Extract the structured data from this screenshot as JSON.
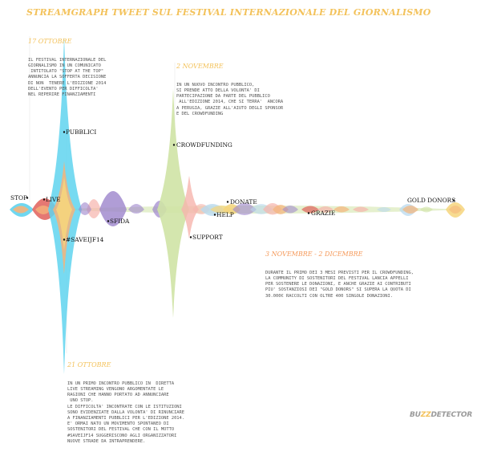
{
  "chart_data": {
    "type": "area",
    "title": "STREAMGRAPH TWEET SUL FESTIVAL INTERNAZIONALE DEL GIORNALISMO",
    "colors": {
      "cyan": "#5fd3ee",
      "yellow": "#f6d57c",
      "orange": "#f5b37a",
      "red": "#e0605a",
      "purple": "#9c84cc",
      "green": "#cfe3a5",
      "pink": "#f6b4ad",
      "lightblue": "#b9d9ef",
      "text_yellow": "#f3c25b",
      "text_orange": "#f59a5b"
    },
    "events": [
      {
        "label": "STOP",
        "color": "#5fd3ee"
      },
      {
        "label": "LIVE",
        "color": "#e0605a"
      },
      {
        "label": "PUBBLICI",
        "color": "#5fd3ee"
      },
      {
        "label": "#SAVEIJF14",
        "color": "#f6d57c"
      },
      {
        "label": "SFIDA",
        "color": "#9c84cc"
      },
      {
        "label": "CROWDFUNDING",
        "color": "#cfe3a5"
      },
      {
        "label": "SUPPORT",
        "color": "#f6b4ad"
      },
      {
        "label": "DONATE",
        "color": "#f6d57c"
      },
      {
        "label": "HELP",
        "color": "#b9d9ef"
      },
      {
        "label": "GRAZIE",
        "color": "#e0605a"
      },
      {
        "label": "GOLD DONORS",
        "color": "#f6d57c"
      }
    ]
  },
  "annotations": [
    {
      "head": "17 OTTOBRE",
      "lines": [
        "IL FESTIVAL INTERNAZIONALE DEL",
        "GIORNALISMO IN UN COMUNICATO",
        " INTITOLATO \"STOP AT THE TOP\"",
        "ANNUNCIA LA SOFFERTA DECISIONE",
        "DI NON  TENERE L'EDIZIONE 2014",
        "DELL'EVENTO PER DIFFICOLTA'",
        "NEL REPERIRE FINANZIAMENTI"
      ]
    },
    {
      "head": "2 NOVEMBRE",
      "lines": [
        "IN UN NUOVO INCONTRO PUBBLICO,",
        "SI PRENDE ATTO DELLA VOLONTA' DI",
        "PARTECIPAZIONE DA PARTE DEL PUBBLICO",
        " ALL'EDIZIONE 2014, CHE SI TERRA'  ANCORA",
        "A PERUGIA, GRAZIE ALL'AIUTO DEGLI SPONSOR",
        "E DEL CROWDFUNDING"
      ]
    },
    {
      "head": "3 NOVEMBRE - 2 DICEMBRE",
      "lines": [
        "DURANTE IL PRIMO DEI 3 MESI PREVISTI PER IL CROWDFUNDING,",
        "LA COMMUNITY DI SOSTENITORI DEL FESTIVAL LANCIA APPELLI",
        "PER SOSTENERE LE DONAZIONI, E ANCHE GRAZIE AI CONTRIBUTI",
        "PIU' SOSTANZIOSI DEI \"GOLD DONORS\" SI SUPERA LA QUOTA DI",
        "30.000€ RACCOLTI CON OLTRE 400 SINGOLE DONAZIONI."
      ]
    },
    {
      "head": "21 OTTOBRE",
      "lines": [
        "IN UN PRIMO INCONTRO PUBBLICO IN  DIRETTA",
        "LIVE STREAMING VENGONO ARGOMENTATE LE",
        "RAGIONI CHE HANNO PORTATO AD ANNUNCIARE",
        " UNO STOP.",
        "LE DIFFICOLTA' INCONTRATE CON LE ISTITUZIONI",
        "SONO EVIDENZIATE DALLA VOLONTA' DI RINUNCIARE",
        "A FINANZIAMENTI PUBBLICI PER L'EDIZIONE 2014.",
        "E' ORMAI NATO UN MOVIMENTO SPONTANEO DI",
        "SOSTENITORI DEL FESTIVAL CHE CON IL MOTTO",
        "#SAVEIJF14 SUGGERISCONO AGLI ORGANIZZATORI",
        "NUOVE STRADE DA INTRAPRENDERE."
      ]
    }
  ],
  "brand": {
    "pre": "BU",
    "zz": "ZZ",
    "post": "DETECTOR"
  }
}
